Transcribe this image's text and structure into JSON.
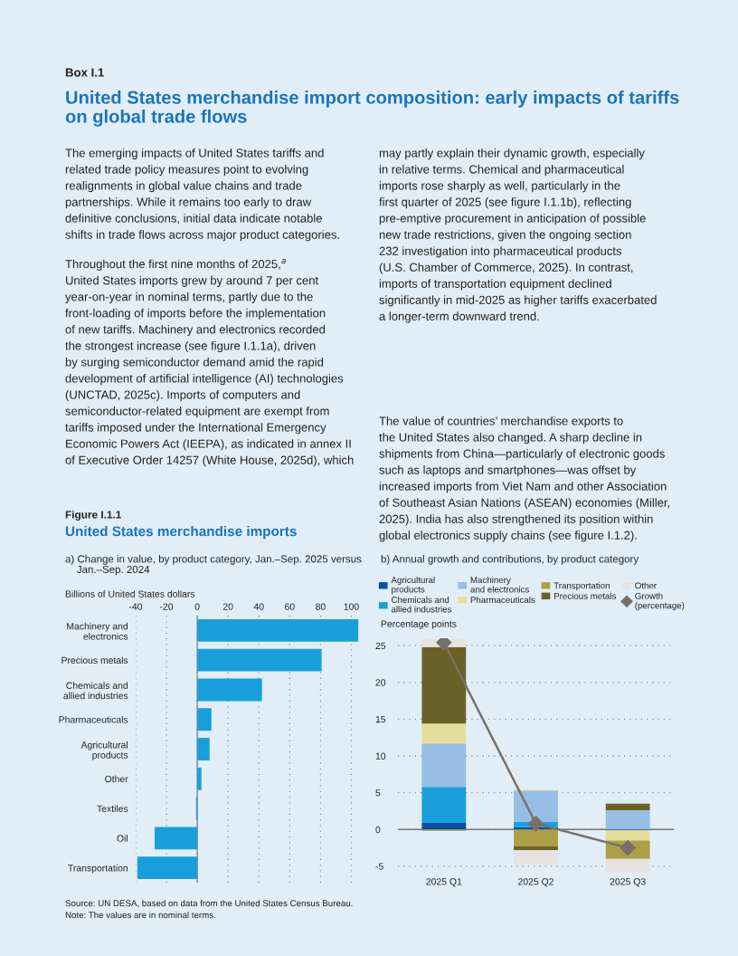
{
  "chart_data": [
    {
      "type": "bar",
      "orientation": "horizontal",
      "title": "a) Change in value, by product category, Jan.–Sep. 2025 versus\n    Jan.–Sep. 2024",
      "xlabel": "Billions of United States dollars",
      "categories": [
        "Machinery and\nelectronics",
        "Precious metals",
        "Chemicals and\nallied industries",
        "Pharmaceuticals",
        "Agricultural\nproducts",
        "Other",
        "Textiles",
        "Oil",
        "Transportation"
      ],
      "values": [
        104.5,
        80.7,
        42,
        9.2,
        8,
        2.7,
        -0.8,
        -27.7,
        -38.9
      ],
      "color": "#189fdb",
      "xlim": [
        -40,
        105
      ],
      "xticks": [
        -40,
        -20,
        0,
        20,
        40,
        60,
        80,
        100
      ],
      "grid": "x",
      "annotations": [
        "Box I.1",
        "United States merchandise import composition: early impacts of tariffs\non global trade flows",
        "The emerging impacts of United States tariffs and\nrelated trade policy measures point to evolving\nrealignments in global value chains and trade\npartnerships. While it remains too early to draw\ndefinitive conclusions, initial data indicate notable\nshifts in trade flows across major product categories.",
        "Throughout the first nine months of 2025,$^{a}$\nUnited States imports grew by around 7 per cent\nyear-on-year in nominal terms, partly due to the\nfront-loading of imports before the implementation\nof new tariffs. Machinery and electronics recorded\nthe strongest increase (see figure I.1.1a), driven\nby surging semiconductor demand amid the rapid\ndevelopment of artificial intelligence (AI) technologies\n(UNCTAD, 2025c). Imports of computers and\nsemiconductor-related equipment are exempt from\ntariffs imposed under the International Emergency\nEconomic Powers Act (IEEPA), as indicated in annex II\nof Executive Order 14257 (White House, 2025d), which",
        "may partly explain their dynamic growth, especially\nin relative terms. Chemical and pharmaceutical\nimports rose sharply as well, particularly in the\nfirst quarter of 2025 (see figure I.1.1b), reflecting\npre-emptive procurement in anticipation of possible\nnew trade restrictions, given the ongoing section\n232 investigation into pharmaceutical products\n(U.S. Chamber of Commerce, 2025). In contrast,\nimports of transportation equipment declined\nsignificantly in mid-2025 as higher tariffs exacerbated\na longer-term downward trend.",
        "The value of countries’ merchandise exports to\nthe United States also changed. A sharp decline in\nshipments from China—particularly of electronic goods\nsuch as laptops and smartphones—was offset by\nincreased imports from Viet Nam and other Association\nof Southeast Asian Nations (ASEAN) economies (Miller,\n2025). India has also strengthened its position within\nglobal electronics supply chains (see figure I.1.2).",
        "Figure I.1.1",
        "United States merchandise imports",
        "Source: UN DESA, based on data from the United States Census Bureau.",
        "Note: The values are in nominal terms."
      ]
    },
    {
      "type": "bar",
      "stacked": true,
      "title": "b) Annual growth and contributions, by product category",
      "ylabel": "Percentage points",
      "categories": [
        "2025 Q1",
        "2025 Q2",
        "2025 Q3"
      ],
      "series": [
        {
          "name": "Agricultural\nproducts",
          "color": "#0a4f9e",
          "values": [
            0.9,
            0.3,
            -0.1
          ]
        },
        {
          "name": "Chemicals and\nallied industries",
          "color": "#189fdb",
          "values": [
            4.9,
            0.7,
            0
          ]
        },
        {
          "name": "Machinery\nand electronics",
          "color": "#96bde3",
          "values": [
            5.9,
            4.3,
            2.6
          ]
        },
        {
          "name": "Pharmaceuticals",
          "color": "#e5dd9a",
          "values": [
            2.7,
            0.1,
            -1.4
          ]
        },
        {
          "name": "Transportation",
          "color": "#ae9e45",
          "values": [
            -0.2,
            -2.3,
            -2.5
          ]
        },
        {
          "name": "Precious metals",
          "color": "#6b6128",
          "values": [
            10.4,
            -0.5,
            0.9
          ]
        },
        {
          "name": "Other",
          "color": "#e6e2e0",
          "values": [
            1.1,
            -2.0,
            -1.8
          ]
        },
        {
          "name": "Growth\n(percentage)",
          "type": "line",
          "color": "#77706a",
          "values": [
            25.4,
            0.8,
            -2.5
          ]
        }
      ],
      "marker": "diamond",
      "ylim": [
        -6,
        26
      ],
      "yticks": [
        -5,
        0,
        5,
        10,
        15,
        20,
        25
      ],
      "grid": "y",
      "legend": "top"
    }
  ]
}
